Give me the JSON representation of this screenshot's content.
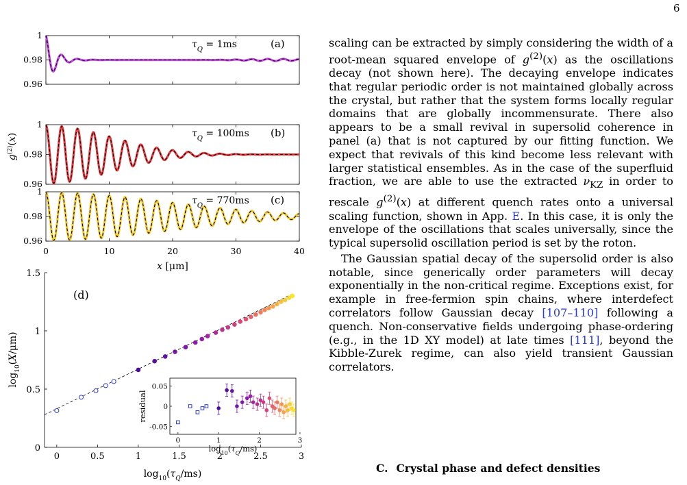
{
  "page_number": "6",
  "figure": {
    "panels": [
      {
        "tag": "(a)",
        "label": "τ_Q = 1ms",
        "label_html": "<tspan font-style=\"italic\">τ</tspan><tspan baseline-shift=\"sub\" font-size=\"10\" font-style=\"italic\">Q</tspan> = 1ms",
        "curve_color": "#c234e6",
        "ylim": [
          0.96,
          1.0
        ],
        "yticks": [
          "1",
          "0.98",
          "0.96"
        ]
      },
      {
        "tag": "(b)",
        "label": "τ_Q = 100ms",
        "label_html": "<tspan font-style=\"italic\">τ</tspan><tspan baseline-shift=\"sub\" font-size=\"10\" font-style=\"italic\">Q</tspan> = 100ms",
        "curve_color": "#e2262a",
        "ylim": [
          0.96,
          1.0
        ],
        "yticks": [
          "1",
          "0.98",
          "0.96"
        ]
      },
      {
        "tag": "(c)",
        "label": "τ_Q = 770ms",
        "label_html": "<tspan font-style=\"italic\">τ</tspan><tspan baseline-shift=\"sub\" font-size=\"10\" font-style=\"italic\">Q</tspan> = 770ms",
        "curve_color": "#f3c315",
        "ylim": [
          0.96,
          1.0
        ],
        "yticks": [
          "1",
          "0.98",
          "0.96"
        ]
      }
    ],
    "panels_ylabel": "g(2)(x)",
    "panels_xlabel": "x [μm]",
    "panels_xticks": [
      "0",
      "10",
      "20",
      "30",
      "40"
    ],
    "panel_d": {
      "tag": "(d)",
      "ylabel": "log10(X/μm)",
      "xlabel": "log10(τ_Q/ms)",
      "xticks": [
        "0",
        "0.5",
        "1",
        "1.5",
        "2",
        "2.5",
        "3"
      ],
      "yticks": [
        "0",
        "0.5",
        "1",
        "1.5"
      ],
      "inset": {
        "ylabel": "residual",
        "xlabel": "log10(τ_Q/ms)",
        "yticks": [
          "0.05",
          "0",
          "-0.05"
        ],
        "xticks": [
          "0",
          "1",
          "2",
          "3"
        ]
      }
    }
  },
  "chart_data": [
    {
      "type": "line",
      "panel": "(a)",
      "xlabel": "x [μm]",
      "ylabel": "g(2)(x)",
      "xlim": [
        0,
        40
      ],
      "ylim": [
        0.96,
        1.0
      ],
      "series": [
        {
          "name": "τ_Q = 1ms",
          "baseline": 0.98,
          "oscillation_period": 2.5,
          "amplitude_start": 0.02,
          "decay": "fast (~3 μm)",
          "late_revival_amplitude": 0.0008
        }
      ]
    },
    {
      "type": "line",
      "panel": "(b)",
      "xlabel": "x [μm]",
      "ylabel": "g(2)(x)",
      "xlim": [
        0,
        40
      ],
      "ylim": [
        0.96,
        1.0
      ],
      "series": [
        {
          "name": "τ_Q = 100ms",
          "baseline": 0.98,
          "oscillation_period": 2.5,
          "amplitude_start": 0.019,
          "decay": "gaussian (~15 μm)"
        }
      ]
    },
    {
      "type": "line",
      "panel": "(c)",
      "xlabel": "x [μm]",
      "ylabel": "g(2)(x)",
      "xlim": [
        0,
        40
      ],
      "ylim": [
        0.96,
        1.0
      ],
      "series": [
        {
          "name": "τ_Q = 770ms",
          "baseline": 0.98,
          "oscillation_period": 2.5,
          "amplitude_start": 0.019,
          "decay": "gaussian (~28 μm)"
        }
      ]
    },
    {
      "type": "scatter",
      "panel": "(d)",
      "xlabel": "log10(τ_Q/ms)",
      "ylabel": "log10(X/μm)",
      "xlim": [
        -0.15,
        3.0
      ],
      "ylim": [
        0,
        1.5
      ],
      "fit_line": {
        "x": [
          -0.15,
          2.9
        ],
        "y": [
          0.28,
          1.32
        ]
      },
      "open_points": {
        "x": [
          0,
          0.3,
          0.48,
          0.6,
          0.7
        ],
        "y": [
          0.315,
          0.43,
          0.485,
          0.53,
          0.565
        ]
      },
      "filled_points": {
        "x": [
          1.0,
          1.2,
          1.33,
          1.45,
          1.58,
          1.7,
          1.78,
          1.85,
          1.95,
          2.03,
          2.1,
          2.18,
          2.25,
          2.32,
          2.38,
          2.44,
          2.5,
          2.55,
          2.6,
          2.65,
          2.7,
          2.75,
          2.8,
          2.85,
          2.89
        ],
        "y": [
          0.665,
          0.74,
          0.78,
          0.82,
          0.86,
          0.9,
          0.93,
          0.955,
          0.985,
          1.01,
          1.03,
          1.055,
          1.08,
          1.1,
          1.12,
          1.14,
          1.16,
          1.18,
          1.195,
          1.21,
          1.23,
          1.25,
          1.265,
          1.285,
          1.3
        ]
      },
      "inset": {
        "xlabel": "log10(τ_Q/ms)",
        "ylabel": "residual",
        "xlim": [
          -0.2,
          2.9
        ],
        "ylim": [
          -0.07,
          0.07
        ],
        "open_points": {
          "x": [
            0,
            0.3,
            0.48,
            0.6,
            0.7
          ],
          "y": [
            -0.04,
            0.0,
            -0.015,
            -0.005,
            0.0
          ]
        },
        "filled_points": {
          "x": [
            1.0,
            1.2,
            1.33,
            1.45,
            1.58,
            1.7,
            1.78,
            1.85,
            1.95,
            2.03,
            2.1,
            2.18,
            2.25,
            2.32,
            2.38,
            2.44,
            2.5,
            2.55,
            2.6,
            2.65,
            2.7,
            2.75,
            2.8,
            2.85
          ],
          "y": [
            -0.005,
            0.04,
            0.038,
            0.0,
            0.01,
            0.02,
            0.025,
            0.01,
            0.005,
            0.015,
            0.01,
            -0.01,
            0.02,
            0.0,
            -0.005,
            0.01,
            -0.01,
            0.005,
            -0.015,
            0.0,
            -0.01,
            0.005,
            -0.005,
            -0.01
          ]
        }
      }
    }
  ],
  "text": {
    "paragraph1": "scaling can be extracted by simply considering the width of a root-mean squared envelope of g(2)(x) as the oscillations decay (not shown here). The decaying envelope indicates that regular periodic order is not maintained globally across the crystal, but rather that the system forms locally regular domains that are globally incommensurate. There also appears to be a small revival in supersolid coherence in panel (a) that is not captured by our fitting function. We expect that revivals of this kind become less relevant with larger statistical ensembles. As in the case of the superfluid fraction, we are able to use the extracted νKZ in order to rescale g(2)(x) at different quench rates onto a universal scaling function, shown in App. E. In this case, it is only the envelope of the oscillations that scales universally, since the typical supersolid oscillation period is set by the roton.",
    "paragraph2": "The Gaussian spatial decay of the supersolid order is also notable, since generically order parameters will decay exponentially in the non-critical regime. Exceptions exist, for example in free-fermion spin chains, where interdefect correlators follow Gaussian decay [107–110] following a quench. Non-conservative fields undergoing phase-ordering (e.g., in the 1D XY model) at late times [111], beyond the Kibble-Zurek regime, can also yield transient Gaussian correlators.",
    "section_number": "C.",
    "section_title": "Crystal phase and defect densities",
    "html": {
      "p1": "scaling can be extracted by simply considering the width of a root-mean squared envelope of <i>g</i><sup>(2)</sup>(<i>x</i>) as the oscillations decay (not shown here). The decaying envelope indicates that regular periodic order is not maintained globally across the crystal, but rather that the system forms locally regular domains that are globally incommensurate. There also appears to be a small revival in supersolid coherence in panel (a) that is not captured by our fitting function. We expect that revivals of this kind become less relevant with larger statistical ensembles. As in the case of the superfluid fraction, we are able to use the extracted <i>ν</i><sub>KZ</sub> in order to rescale <i>g</i><sup>(2)</sup>(<i>x</i>) at different quench rates onto a universal scaling function, shown in App. <span class=\"cite\">E</span>. In this case, it is only the envelope of the oscillations that scales universally, since the typical supersolid oscillation period is set by the roton.",
      "p2": "The Gaussian spatial decay of the supersolid order is also notable, since generically order parameters will decay exponentially in the non-critical regime. Exceptions exist, for example in free-fermion spin chains, where interdefect correlators follow Gaussian decay <span class=\"cite\">[107–110]</span> following a quench. Non-conservative fields undergoing phase-ordering (e.g., in the 1D XY model) at late times <span class=\"cite\">[111]</span>, beyond the Kibble-Zurek regime, can also yield transient Gaussian correlators."
    }
  },
  "colors": {
    "panel_a": "#c234e6",
    "panel_b": "#e2262a",
    "panel_c": "#f3c315",
    "fit": "#000000",
    "open_marker": "#2b3bcc",
    "filled_start": "#4a0ca0",
    "filled_end": "#f8e62e",
    "link": "#2a3bd6"
  }
}
